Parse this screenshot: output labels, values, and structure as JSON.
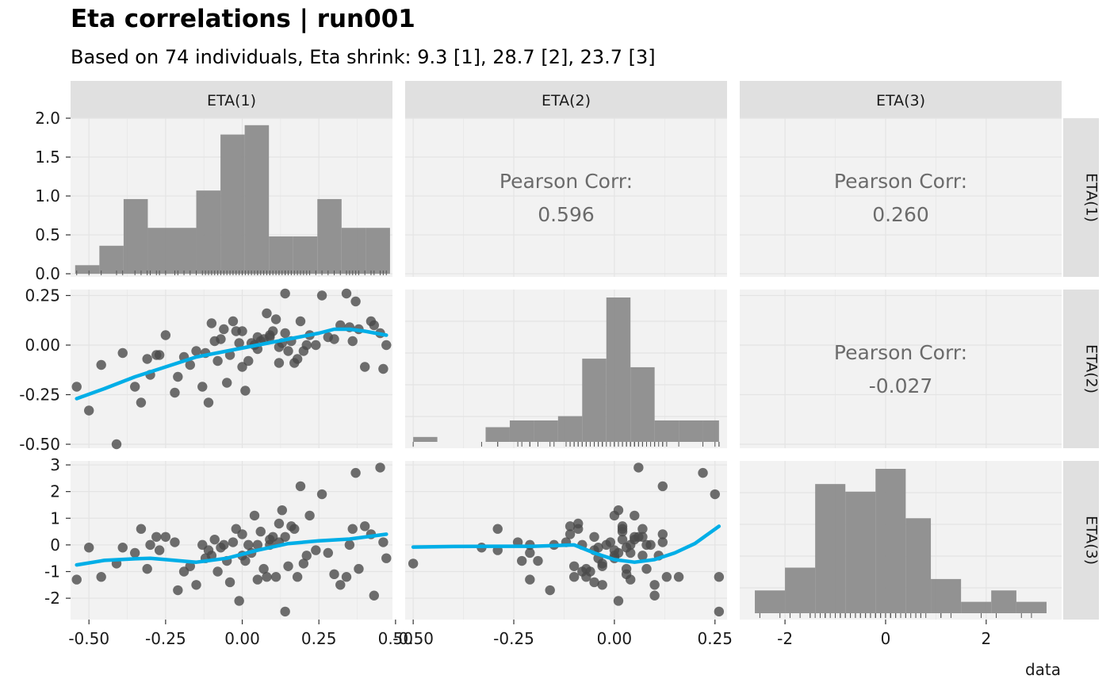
{
  "title": "Eta correlations | run001",
  "subtitle": "Based on 74 individuals, Eta shrink: 9.3 [1], 28.7 [2], 23.7 [3]",
  "xlabel": "data",
  "colors": {
    "panel_bg": "#f2f2f2",
    "strip_bg": "#e0e0e0",
    "grid": "#e4e4e4",
    "bar": "#8c8c8c",
    "point": "#4a4a4a",
    "smooth": "#00aee7",
    "corr_text": "#6b6b6b"
  },
  "chart_data": {
    "type": "scatter-matrix",
    "variables": [
      "ETA(1)",
      "ETA(2)",
      "ETA(3)"
    ],
    "col_axes": [
      {
        "lim": [
          -0.56,
          0.49
        ],
        "ticks": [
          -0.5,
          -0.25,
          0,
          0.25,
          0.5
        ],
        "tick_labels": [
          "-0.50",
          "-0.25",
          "0.00",
          "0.25",
          "0.50"
        ]
      },
      {
        "lim": [
          -0.52,
          0.28
        ],
        "ticks": [
          -0.5,
          -0.25,
          0,
          0.25
        ],
        "tick_labels": [
          "-0.50",
          "-0.25",
          "0.00",
          "0.25"
        ]
      },
      {
        "lim": [
          -2.9,
          3.5
        ],
        "ticks": [
          -2,
          0,
          2
        ],
        "tick_labels": [
          "-2",
          "0",
          "2"
        ]
      }
    ],
    "row_axes": [
      {
        "lim": [
          -0.04,
          2.0
        ],
        "ticks": [
          0,
          0.5,
          1.0,
          1.5,
          2.0
        ],
        "tick_labels": [
          "0.0",
          "0.5",
          "1.0",
          "1.5",
          "2.0"
        ]
      },
      {
        "lim": [
          -0.52,
          0.28
        ],
        "ticks": [
          -0.5,
          -0.25,
          0,
          0.25
        ],
        "tick_labels": [
          "-0.50",
          "-0.25",
          "0.00",
          "0.25"
        ]
      },
      {
        "lim": [
          -2.8,
          3.15
        ],
        "ticks": [
          -2,
          -1,
          0,
          1,
          2,
          3
        ],
        "tick_labels": [
          "-2",
          "-1",
          "0",
          "1",
          "2",
          "3"
        ]
      }
    ],
    "histograms": [
      {
        "var": "ETA(1)",
        "breaks": [
          -0.545,
          -0.466,
          -0.387,
          -0.308,
          -0.229,
          -0.15,
          -0.071,
          0.008,
          0.087,
          0.166,
          0.245,
          0.324,
          0.403,
          0.482
        ],
        "density": [
          0.11,
          0.36,
          0.96,
          0.59,
          0.59,
          1.07,
          1.79,
          1.91,
          0.48,
          0.48,
          0.96,
          0.59,
          0.59
        ]
      },
      {
        "var": "ETA(2)",
        "breaks": [
          -0.5,
          -0.44,
          -0.38,
          -0.32,
          -0.26,
          -0.2,
          -0.14,
          -0.08,
          -0.02,
          0.04,
          0.1,
          0.16,
          0.22,
          0.26
        ],
        "density": [
          0.08,
          0.0,
          0.0,
          0.24,
          0.35,
          0.35,
          0.42,
          1.36,
          2.36,
          1.22,
          0.35,
          0.35,
          0.35
        ]
      },
      {
        "var": "ETA(3)",
        "breaks": [
          -2.6,
          -2.0,
          -1.4,
          -0.8,
          -0.2,
          0.4,
          0.9,
          1.5,
          2.1,
          2.6,
          3.2
        ],
        "density": [
          0.06,
          0.12,
          0.34,
          0.32,
          0.38,
          0.25,
          0.09,
          0.03,
          0.06,
          0.03
        ]
      }
    ],
    "correlations": [
      {
        "row": "ETA(1)",
        "col": "ETA(2)",
        "label": "Pearson Corr:",
        "value": "0.596"
      },
      {
        "row": "ETA(1)",
        "col": "ETA(3)",
        "label": "Pearson Corr:",
        "value": "0.260"
      },
      {
        "row": "ETA(2)",
        "col": "ETA(3)",
        "label": "Pearson Corr:",
        "value": "-0.027"
      }
    ],
    "individuals": {
      "eta1": [
        -0.54,
        -0.5,
        -0.46,
        -0.41,
        -0.39,
        -0.35,
        -0.33,
        -0.31,
        -0.3,
        -0.28,
        -0.22,
        -0.21,
        -0.19,
        -0.17,
        -0.15,
        -0.13,
        -0.11,
        -0.1,
        -0.09,
        -0.08,
        -0.06,
        -0.05,
        -0.04,
        -0.03,
        -0.02,
        -0.01,
        0.0,
        0.01,
        0.02,
        0.03,
        0.04,
        0.05,
        0.06,
        0.07,
        0.08,
        0.09,
        0.1,
        0.11,
        0.12,
        0.13,
        0.14,
        0.15,
        0.16,
        0.17,
        0.18,
        0.19,
        0.2,
        0.22,
        0.24,
        0.26,
        0.28,
        0.3,
        0.32,
        0.34,
        0.36,
        0.37,
        0.38,
        0.4,
        0.42,
        0.43,
        0.45,
        0.46,
        0.47,
        -0.25,
        -0.27,
        0.0,
        0.05,
        0.09,
        0.12,
        -0.07,
        -0.12,
        0.21,
        0.35,
        0.14
      ],
      "eta2": [
        -0.21,
        -0.33,
        -0.1,
        -0.5,
        -0.04,
        -0.21,
        -0.29,
        -0.07,
        -0.15,
        -0.05,
        -0.24,
        -0.16,
        -0.06,
        -0.1,
        -0.03,
        -0.21,
        -0.29,
        0.11,
        0.02,
        -0.08,
        0.08,
        -0.19,
        -0.05,
        0.12,
        0.07,
        0.01,
        -0.11,
        -0.23,
        -0.08,
        0.01,
        0.0,
        0.04,
        0.02,
        0.03,
        0.16,
        0.05,
        0.07,
        0.13,
        -0.09,
        0.01,
        0.26,
        -0.03,
        0.02,
        -0.09,
        -0.07,
        0.12,
        -0.03,
        0.05,
        0.0,
        0.25,
        0.04,
        0.03,
        0.1,
        0.26,
        0.02,
        0.22,
        0.08,
        -0.11,
        0.12,
        0.1,
        0.06,
        -0.12,
        0.0,
        0.05,
        -0.05,
        0.07,
        -0.02,
        0.04,
        -0.01,
        0.03,
        -0.04,
        0.0,
        0.09,
        0.06
      ],
      "eta3": [
        -1.3,
        -0.1,
        -1.2,
        -0.7,
        -0.1,
        -0.3,
        0.6,
        -0.9,
        0.0,
        0.3,
        0.1,
        -1.7,
        -1.0,
        -0.8,
        -1.5,
        0.0,
        -0.2,
        -0.4,
        0.2,
        -1.0,
        0.0,
        -0.6,
        -1.4,
        0.1,
        0.6,
        -2.1,
        0.4,
        -0.6,
        0.0,
        -0.3,
        1.1,
        -1.3,
        0.5,
        -0.9,
        -1.2,
        0.2,
        0.3,
        -1.2,
        0.8,
        1.3,
        -2.5,
        -0.8,
        0.7,
        0.6,
        -1.2,
        2.2,
        -0.7,
        1.1,
        -0.2,
        1.9,
        -0.3,
        -1.1,
        -1.5,
        -1.2,
        0.6,
        2.7,
        -0.9,
        0.7,
        0.4,
        -1.9,
        2.9,
        0.1,
        -0.5,
        0.3,
        -0.2,
        -0.4,
        0.0,
        0.0,
        0.1,
        -0.1,
        -0.5,
        -0.4,
        0.0,
        0.3
      ]
    },
    "smooth": {
      "eta2_vs_eta1": {
        "x": [
          -0.54,
          -0.45,
          -0.35,
          -0.25,
          -0.15,
          -0.05,
          0.05,
          0.15,
          0.25,
          0.3,
          0.35,
          0.4,
          0.47
        ],
        "y": [
          -0.27,
          -0.22,
          -0.16,
          -0.11,
          -0.06,
          -0.03,
          0.0,
          0.03,
          0.06,
          0.08,
          0.08,
          0.07,
          0.05
        ]
      },
      "eta3_vs_eta1": {
        "x": [
          -0.54,
          -0.45,
          -0.35,
          -0.3,
          -0.25,
          -0.15,
          -0.05,
          0.05,
          0.15,
          0.25,
          0.35,
          0.47
        ],
        "y": [
          -0.75,
          -0.58,
          -0.52,
          -0.5,
          -0.55,
          -0.65,
          -0.5,
          -0.2,
          0.05,
          0.15,
          0.22,
          0.4
        ]
      },
      "eta3_vs_eta2": {
        "x": [
          -0.5,
          -0.4,
          -0.3,
          -0.2,
          -0.1,
          -0.05,
          0.0,
          0.05,
          0.1,
          0.15,
          0.2,
          0.26
        ],
        "y": [
          -0.08,
          -0.06,
          -0.05,
          -0.05,
          0.0,
          -0.3,
          -0.55,
          -0.65,
          -0.55,
          -0.3,
          0.05,
          0.7
        ]
      }
    }
  }
}
